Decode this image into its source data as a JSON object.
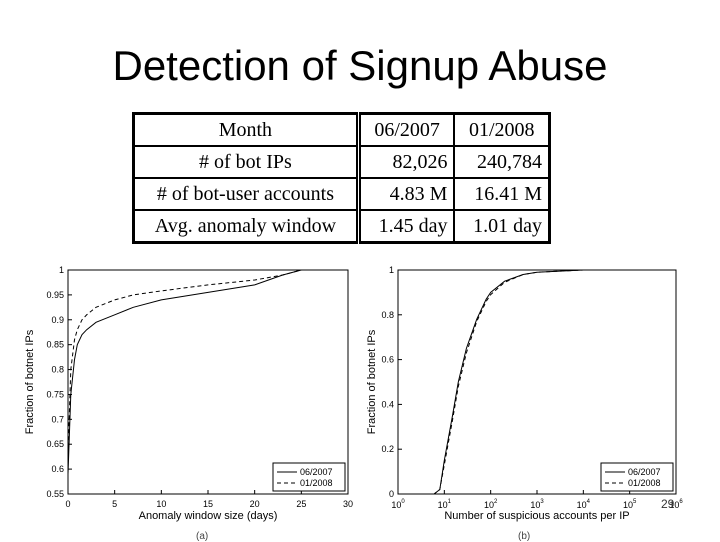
{
  "slide": {
    "title": "Detection of Signup Abuse",
    "page_number": "29"
  },
  "table": {
    "header": {
      "label": "Month",
      "col1": "06/2007",
      "col2": "01/2008"
    },
    "rows": [
      {
        "label": "# of bot IPs",
        "col1": "82,026",
        "col2": "240,784"
      },
      {
        "label": "# of bot-user accounts",
        "col1": "4.83 M",
        "col2": "16.41 M"
      },
      {
        "label": "Avg. anomaly window",
        "col1": "1.45 day",
        "col2": "1.01 day"
      }
    ]
  },
  "chart_data": [
    {
      "type": "line",
      "xlabel": "Anomaly window size (days)",
      "ylabel": "Fraction of botnet IPs",
      "xlim": [
        0,
        30
      ],
      "ylim": [
        0.55,
        1
      ],
      "xticks": [
        "0",
        "5",
        "10",
        "15",
        "20",
        "25",
        "30"
      ],
      "yticks": [
        "0.55",
        "0.6",
        "0.65",
        "0.7",
        "0.75",
        "0.8",
        "0.85",
        "0.9",
        "0.95",
        "1"
      ],
      "grid": false,
      "legend_position": "bottom-right",
      "series": [
        {
          "name": "06/2007",
          "style": "solid",
          "x": [
            0,
            0.3,
            0.7,
            1,
            1.5,
            2,
            3,
            5,
            7,
            10,
            15,
            20,
            23,
            25,
            30
          ],
          "y": [
            0.59,
            0.75,
            0.82,
            0.85,
            0.87,
            0.88,
            0.895,
            0.91,
            0.925,
            0.94,
            0.955,
            0.97,
            0.99,
            1,
            1
          ]
        },
        {
          "name": "01/2008",
          "style": "dashed",
          "x": [
            0,
            0.3,
            0.7,
            1,
            1.5,
            2,
            3,
            5,
            7,
            10,
            15,
            20,
            23,
            25,
            30
          ],
          "y": [
            0.63,
            0.8,
            0.86,
            0.88,
            0.9,
            0.91,
            0.925,
            0.94,
            0.95,
            0.958,
            0.97,
            0.98,
            0.99,
            1,
            1
          ]
        }
      ]
    },
    {
      "type": "line",
      "xlabel": "Number of suspicious accounts per IP",
      "ylabel": "Fraction of botnet IPs",
      "xscale": "log",
      "xlim": [
        1,
        1000000
      ],
      "ylim": [
        0,
        1
      ],
      "xtick_bases": [
        "10",
        "10",
        "10",
        "10",
        "10",
        "10",
        "10"
      ],
      "xtick_exponents": [
        "0",
        "1",
        "2",
        "3",
        "4",
        "5",
        "6"
      ],
      "yticks": [
        "0",
        "0.2",
        "0.4",
        "0.6",
        "0.8",
        "1"
      ],
      "grid": false,
      "legend_position": "bottom-right",
      "series": [
        {
          "name": "06/2007",
          "style": "solid",
          "x": [
            1,
            6,
            8,
            10,
            15,
            20,
            30,
            50,
            80,
            100,
            200,
            500,
            1000,
            10000,
            1000000
          ],
          "y": [
            0,
            0,
            0.02,
            0.15,
            0.35,
            0.5,
            0.65,
            0.78,
            0.87,
            0.9,
            0.95,
            0.98,
            0.99,
            1,
            1
          ]
        },
        {
          "name": "01/2008",
          "style": "dashed",
          "x": [
            1,
            6,
            8,
            10,
            15,
            20,
            30,
            50,
            80,
            100,
            200,
            500,
            1000,
            10000,
            1000000
          ],
          "y": [
            0,
            0,
            0.02,
            0.13,
            0.33,
            0.48,
            0.63,
            0.77,
            0.86,
            0.89,
            0.945,
            0.98,
            0.99,
            1,
            1
          ]
        }
      ]
    }
  ]
}
